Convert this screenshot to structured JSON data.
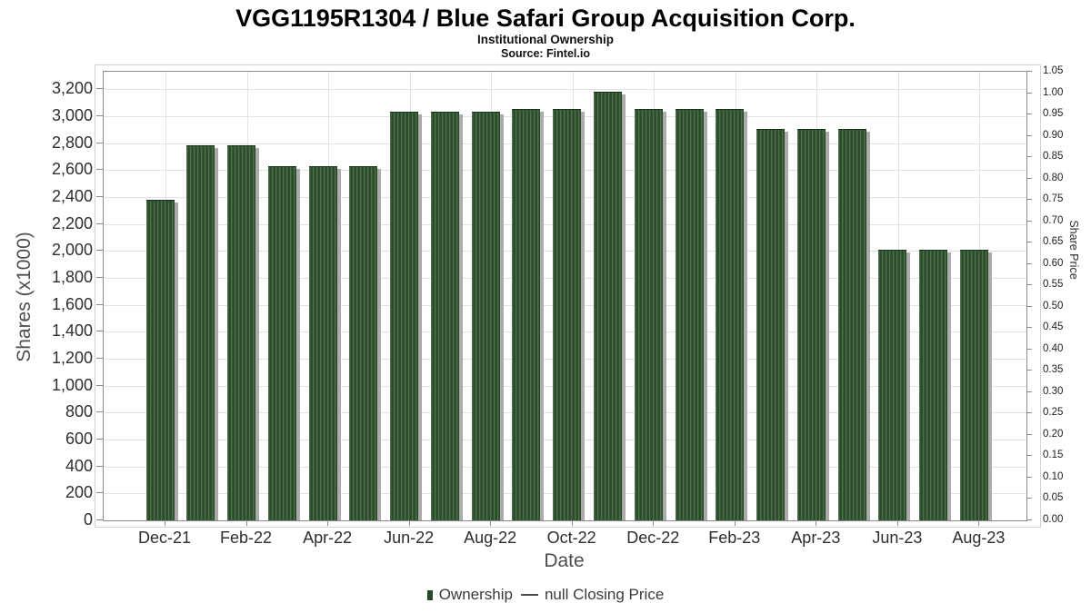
{
  "header": {
    "title": "VGG1195R1304 / Blue Safari Group Acquisition Corp.",
    "subtitle": "Institutional Ownership",
    "source": "Source: Fintel.io"
  },
  "chart_data": {
    "type": "bar",
    "title": "VGG1195R1304 / Blue Safari Group Acquisition Corp.",
    "subtitle": "Institutional Ownership",
    "source": "Source: Fintel.io",
    "xlabel": "Date",
    "ylabel_left": "Shares (x1000)",
    "ylabel_right": "Share Price",
    "x": [
      "Dec-21",
      "Jan-22",
      "Feb-22",
      "Mar-22",
      "Apr-22",
      "May-22",
      "Jun-22",
      "Jul-22",
      "Aug-22",
      "Sep-22",
      "Oct-22",
      "Nov-22",
      "Dec-22",
      "Jan-23",
      "Feb-23",
      "Mar-23",
      "Apr-23",
      "May-23",
      "Jun-23",
      "Jul-23",
      "Aug-23"
    ],
    "series": [
      {
        "name": "Ownership",
        "type": "bar",
        "values": [
          2370,
          2775,
          2775,
          2625,
          2625,
          2625,
          3030,
          3030,
          3030,
          3050,
          3050,
          3175,
          3050,
          3050,
          3050,
          2900,
          2900,
          2900,
          2000,
          2000,
          2000
        ]
      },
      {
        "name": "null Closing Price",
        "type": "line",
        "values": []
      }
    ],
    "x_tick_labels": [
      "Dec-21",
      "Feb-22",
      "Apr-22",
      "Jun-22",
      "Aug-22",
      "Oct-22",
      "Dec-22",
      "Feb-23",
      "Apr-23",
      "Jun-23",
      "Aug-23"
    ],
    "y_left_ticks": [
      0,
      200,
      400,
      600,
      800,
      1000,
      1200,
      1400,
      1600,
      1800,
      2000,
      2200,
      2400,
      2600,
      2800,
      3000,
      3200
    ],
    "y_left_tick_labels": [
      "0",
      "200",
      "400",
      "600",
      "800",
      "1,000",
      "1,200",
      "1,400",
      "1,600",
      "1,800",
      "2,000",
      "2,200",
      "2,400",
      "2,600",
      "2,800",
      "3,000",
      "3,200"
    ],
    "y_right_tick_labels": [
      "0.00",
      "0.05",
      "0.10",
      "0.15",
      "0.20",
      "0.25",
      "0.30",
      "0.35",
      "0.40",
      "0.45",
      "0.50",
      "0.55",
      "0.60",
      "0.65",
      "0.70",
      "0.75",
      "0.80",
      "0.85",
      "0.90",
      "0.95",
      "1.00",
      "1.05"
    ],
    "ylim_left": [
      0,
      3330
    ],
    "ylim_right": [
      0,
      1.05
    ],
    "grid": true,
    "legend_position": "bottom",
    "colors": {
      "bar_fill": "#2b512b",
      "bar_edge": "#17331a",
      "bar_shadow": "#ababab",
      "legend_swatch": "#264a28",
      "gridline": "#e2e2e2",
      "axis_border": "#8a8a8a"
    }
  },
  "legend": {
    "ownership_label": "Ownership",
    "price_label": "null Closing Price"
  }
}
